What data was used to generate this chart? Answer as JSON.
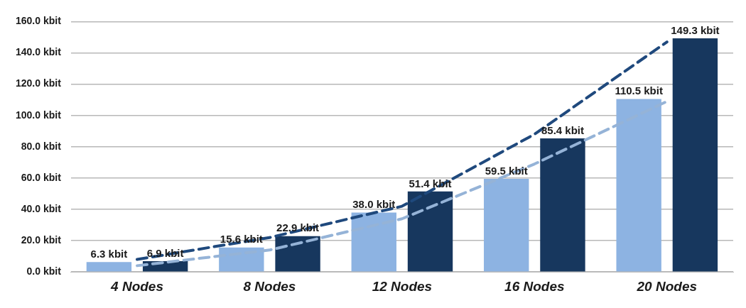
{
  "chart_data": {
    "type": "bar",
    "categories": [
      "4 Nodes",
      "8 Nodes",
      "12 Nodes",
      "16 Nodes",
      "20 Nodes"
    ],
    "series": [
      {
        "color": "#8db3e2",
        "values": [
          6.3,
          15.6,
          38.0,
          59.5,
          110.5
        ],
        "value_labels": [
          "6.3 kbit",
          "15.6 kbit",
          "38.0 kbit",
          "59.5 kbit",
          "110.5 kbit"
        ]
      },
      {
        "color": "#17375e",
        "values": [
          6.9,
          22.9,
          51.4,
          85.4,
          149.3
        ],
        "value_labels": [
          "6.9 kbit",
          "22.9 kbit",
          "51.4 kbit",
          "85.4 kbit",
          "149.3 kbit"
        ]
      },
      {
        "type": "line",
        "color": "#1f497d",
        "line_style": "dashed",
        "values": [
          8,
          22,
          42,
          88,
          147
        ]
      },
      {
        "type": "line",
        "color": "#95b3d7",
        "line_style": "dashed",
        "values": [
          4,
          14,
          34,
          69,
          109
        ]
      }
    ],
    "ylim": [
      0,
      160
    ],
    "yticks": [
      {
        "value": 0,
        "label": "0.0 kbit"
      },
      {
        "value": 20,
        "label": "20.0 kbit"
      },
      {
        "value": 40,
        "label": "40.0 kbit"
      },
      {
        "value": 60,
        "label": "60.0 kbit"
      },
      {
        "value": 80,
        "label": "80.0 kbit"
      },
      {
        "value": 100,
        "label": "100.0 kbit"
      },
      {
        "value": 120,
        "label": "120.0 kbit"
      },
      {
        "value": 140,
        "label": "140.0 kbit"
      },
      {
        "value": 160,
        "label": "160.0 kbit"
      }
    ],
    "grid": "y",
    "legend": false,
    "marker": "none"
  }
}
